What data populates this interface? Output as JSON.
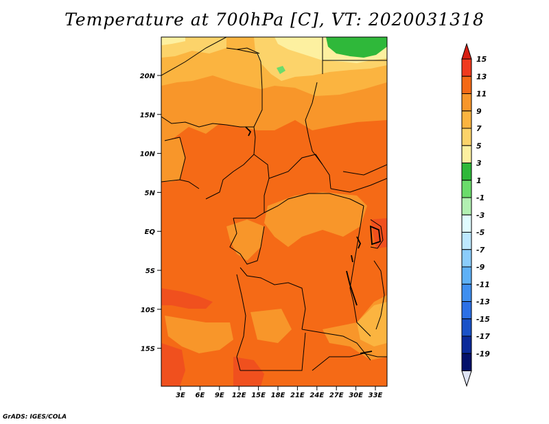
{
  "title": "Temperature at 700hPa [C], VT: 2020031318",
  "credit": "GrADS: IGES/COLA",
  "lat_labels": [
    "20N",
    "15N",
    "10N",
    "5N",
    "EQ",
    "5S",
    "10S",
    "15S"
  ],
  "lon_labels": [
    "3E",
    "6E",
    "9E",
    "12E",
    "15E",
    "18E",
    "21E",
    "24E",
    "27E",
    "30E",
    "33E"
  ],
  "colorbar": {
    "labels": [
      "15",
      "13",
      "11",
      "9",
      "7",
      "5",
      "3",
      "1",
      "-1",
      "-3",
      "-5",
      "-7",
      "-9",
      "-11",
      "-13",
      "-15",
      "-17",
      "-19"
    ],
    "colors": [
      "#f03a1e",
      "#f56a16",
      "#f8962a",
      "#fbb440",
      "#fcd36a",
      "#fdf0a0",
      "#2fb83a",
      "#6bdc6b",
      "#b2f0b2",
      "#e0fcff",
      "#bde8ff",
      "#8bcdfc",
      "#5fb1f7",
      "#3f8ff0",
      "#2c70e6",
      "#1a52c8",
      "#0b2a9a",
      "#04106a"
    ],
    "top_color": "#d81e12",
    "bottom_color": "#dfe4f5"
  },
  "map_colors": {
    "hot": "#f0501e",
    "main": "#f56a16",
    "warm": "#f8962a",
    "mild": "#fbb440",
    "cool": "#fcd36a",
    "pale": "#fdf0a0",
    "green": "#2fb83a",
    "light_green": "#6bdc6b"
  }
}
